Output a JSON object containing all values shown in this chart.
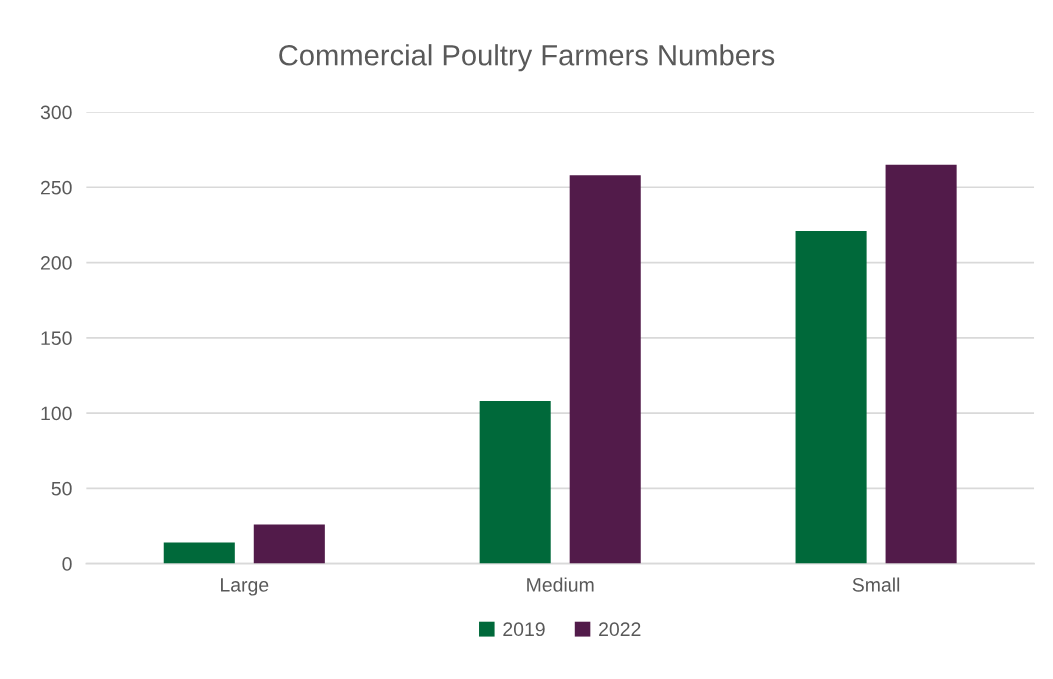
{
  "chart_data": {
    "type": "bar",
    "title": "Commercial Poultry Farmers Numbers",
    "categories": [
      "Large",
      "Medium",
      "Small"
    ],
    "series": [
      {
        "name": "2019",
        "color": "#00693a",
        "values": [
          14,
          108,
          221
        ]
      },
      {
        "name": "2022",
        "color": "#521b4a",
        "values": [
          26,
          258,
          265
        ]
      }
    ],
    "ylim": [
      0,
      300
    ],
    "yticks": [
      0,
      50,
      100,
      150,
      200,
      250,
      300
    ],
    "grid": "y",
    "legend": "bottom"
  }
}
